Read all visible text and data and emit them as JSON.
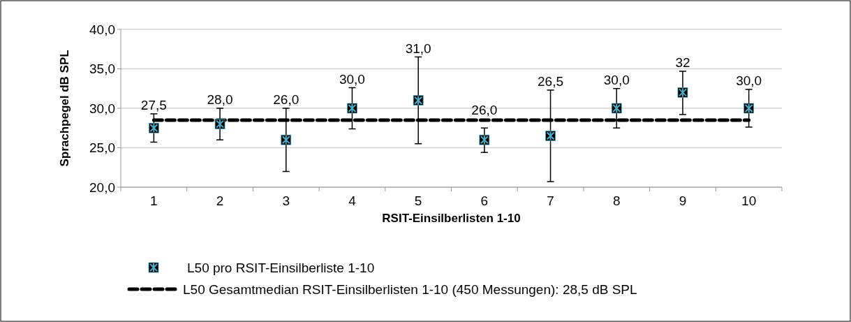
{
  "chart_data": {
    "type": "scatter",
    "xlabel": "RSIT-Einsilberlisten 1-10",
    "ylabel": "Sprachpegel dB SPL",
    "categories": [
      "1",
      "2",
      "3",
      "4",
      "5",
      "6",
      "7",
      "8",
      "9",
      "10"
    ],
    "series": [
      {
        "name": "L50 pro RSIT-Einsilberliste 1-10",
        "color": "#4bacc6",
        "marker": "square",
        "values": [
          27.5,
          28.0,
          26.0,
          30.0,
          31.0,
          26.0,
          26.5,
          30.0,
          32.0,
          30.0
        ],
        "value_labels": [
          "27,5",
          "28,0",
          "26,0",
          "30,0",
          "31,0",
          "26,0",
          "26,5",
          "30,0",
          "32",
          "30,0"
        ],
        "errors": [
          [
            25.7,
            29.3
          ],
          [
            26.0,
            30.0
          ],
          [
            22.0,
            30.0
          ],
          [
            27.4,
            32.6
          ],
          [
            25.5,
            36.5
          ],
          [
            24.4,
            27.5
          ],
          [
            20.7,
            32.3
          ],
          [
            27.5,
            32.5
          ],
          [
            29.2,
            34.7
          ],
          [
            27.6,
            32.4
          ]
        ]
      },
      {
        "name": "L50 Gesamtmedian RSIT-Einsilberlisten 1-10 (450 Messungen): 28,5 dB SPL",
        "type": "line",
        "color": "#000000",
        "line_style": "dashed",
        "values": [
          28.5,
          28.5,
          28.5,
          28.5,
          28.5,
          28.5,
          28.5,
          28.5,
          28.5,
          28.5
        ]
      }
    ],
    "ylim": [
      20,
      40
    ],
    "yticks": [
      {
        "value": 20,
        "label": "20,0"
      },
      {
        "value": 25,
        "label": "25,0"
      },
      {
        "value": 30,
        "label": "30,0"
      },
      {
        "value": 35,
        "label": "35,0"
      },
      {
        "value": 40,
        "label": "40,0"
      }
    ],
    "grid": "y",
    "legend": "bottom"
  }
}
